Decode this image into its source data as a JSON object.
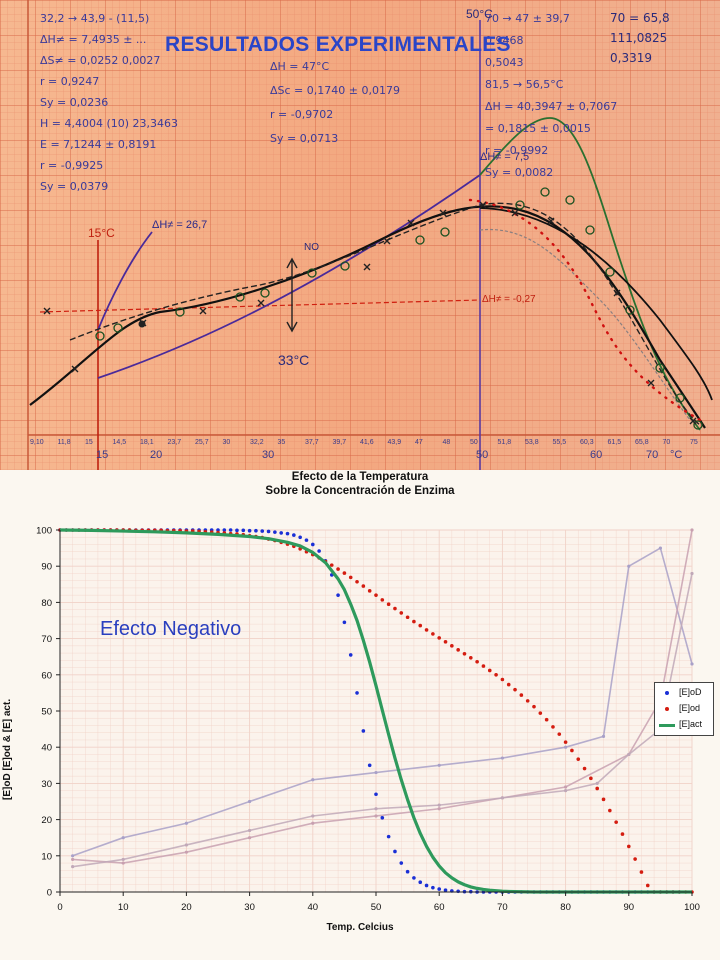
{
  "photo": {
    "title": "RESULTADOS EXPERIMENTALES",
    "handwritten": {
      "top_left": [
        "32,2 → 43,9 - (11,5)",
        "ΔH≠ = 7,4935 ± ...",
        "ΔS≠ = 0,0252 0,0027",
        "r = 0,9247",
        "Sy = 0,0236",
        "H = 4,4004 (10) 23,3463",
        "E = 7,1244 ± 0,8191",
        "r = -0,9925",
        "Sy = 0,0379"
      ],
      "top_mid": [
        "ΔH = 47°C",
        "ΔSc = 0,1740 ± 0,0179",
        "r = -0,9702",
        "Sy = 0,0713"
      ],
      "top_right": [
        "70 → 47 ± 39,7",
        "0,9468",
        "0,5043",
        "81,5 → 56,5°C",
        "ΔH = 40,3947 ± 0,7067",
        "= 0,1815 ± 0,0015",
        "r = -0,9992",
        "Sy = 0,0082"
      ],
      "corner_right": [
        "70 = 65,8",
        "111,0825",
        "0,3319"
      ],
      "mark_50c": "50°C",
      "mark_15c": "15°C",
      "mark_33c": "33°C",
      "mark_no": "NO",
      "dh_267": "ΔH≠ = 26,7",
      "dh_75": "ΔH≠ = 7,5",
      "dh_027": "ΔH≠ = -0,27",
      "x_ticks": [
        "9,10",
        "11,8",
        "15",
        "14,5",
        "18,1",
        "23,7",
        "25,7",
        "30",
        "32,2",
        "35",
        "37,7",
        "39,7",
        "41,6",
        "43,9",
        "47",
        "48",
        "50",
        "51,8",
        "53,8",
        "55,5",
        "60,3",
        "61,5",
        "65,8",
        "70",
        "75"
      ],
      "x_bottom": [
        "15",
        "20",
        "30",
        "50",
        "60",
        "70",
        "°C"
      ]
    }
  },
  "chart_data": {
    "type": "scatter",
    "title_line1": "Efecto de la Temperatura",
    "title_line2": "Sobre la Concentración de Enzima",
    "xlabel": "Temp. Celcius",
    "ylabel": "[E]oD [E]od & [E] act.",
    "xlim": [
      0,
      100
    ],
    "ylim": [
      0,
      100
    ],
    "x_ticks": [
      "0",
      "10",
      "20",
      "30",
      "40",
      "50",
      "60",
      "70",
      "80",
      "90",
      "100"
    ],
    "y_ticks": [
      "0",
      "10",
      "20",
      "30",
      "40",
      "50",
      "60",
      "70",
      "80",
      "90",
      "100"
    ],
    "annotation": "Efecto Negativo",
    "legend_position": "right",
    "series": [
      {
        "name": "[E]oD",
        "style": "dots",
        "color": "#1a2fd6",
        "x": [
          0,
          1,
          2,
          3,
          4,
          5,
          6,
          7,
          8,
          9,
          10,
          11,
          12,
          13,
          14,
          15,
          16,
          17,
          18,
          19,
          20,
          21,
          22,
          23,
          24,
          25,
          26,
          27,
          28,
          29,
          30,
          31,
          32,
          33,
          34,
          35,
          36,
          37,
          38,
          39,
          40,
          41,
          42,
          43,
          44,
          45,
          46,
          47,
          48,
          49,
          50,
          51,
          52,
          53,
          54,
          55,
          56,
          57,
          58,
          59,
          60,
          61,
          62,
          63,
          64,
          65,
          66,
          67,
          68,
          69,
          70,
          71,
          72,
          73,
          74,
          75,
          76,
          77,
          78,
          79,
          80,
          81,
          82,
          83,
          84,
          85,
          86,
          87,
          88,
          89,
          90,
          91,
          92,
          93,
          94,
          95,
          96,
          97,
          98
        ],
        "y": [
          100,
          100,
          100,
          100,
          100,
          100,
          100,
          100,
          100,
          100,
          100,
          100,
          100,
          100,
          100,
          100,
          100,
          100,
          100,
          100,
          100,
          100,
          100,
          100,
          100,
          100,
          100,
          100,
          99.9,
          99.9,
          99.8,
          99.8,
          99.7,
          99.6,
          99.4,
          99.2,
          99,
          98.6,
          98,
          97.2,
          96,
          94.2,
          91.5,
          87.6,
          82,
          74.5,
          65.5,
          55,
          44.5,
          35,
          27,
          20.5,
          15.3,
          11.2,
          8,
          5.6,
          3.9,
          2.7,
          1.8,
          1.2,
          0.8,
          0.5,
          0.3,
          0.2,
          0.1,
          0.1,
          0,
          0,
          0,
          0,
          0,
          0,
          0,
          0,
          0,
          0,
          0,
          0,
          0,
          0,
          0,
          0,
          0,
          0,
          0,
          0,
          0,
          0,
          0,
          0,
          0,
          0,
          0,
          0,
          0,
          0,
          0,
          0,
          0
        ]
      },
      {
        "name": "[E]od",
        "style": "dots",
        "color": "#d41c10",
        "x": [
          0,
          1,
          2,
          3,
          4,
          5,
          6,
          7,
          8,
          9,
          10,
          11,
          12,
          13,
          14,
          15,
          16,
          17,
          18,
          19,
          20,
          21,
          22,
          23,
          24,
          25,
          26,
          27,
          28,
          29,
          30,
          31,
          32,
          33,
          34,
          35,
          36,
          37,
          38,
          39,
          40,
          41,
          42,
          43,
          44,
          45,
          46,
          47,
          48,
          49,
          50,
          51,
          52,
          53,
          54,
          55,
          56,
          57,
          58,
          59,
          60,
          61,
          62,
          63,
          64,
          65,
          66,
          67,
          68,
          69,
          70,
          71,
          72,
          73,
          74,
          75,
          76,
          77,
          78,
          79,
          80,
          81,
          82,
          83,
          84,
          85,
          86,
          87,
          88,
          89,
          90,
          91,
          92,
          93,
          94,
          95,
          96,
          97,
          98,
          99,
          100
        ],
        "y": [
          100,
          100,
          100,
          100,
          100,
          100,
          100,
          100,
          100,
          100,
          100,
          100,
          99.9,
          99.9,
          99.9,
          99.9,
          99.9,
          99.8,
          99.8,
          99.8,
          99.7,
          99.7,
          99.6,
          99.5,
          99.4,
          99.3,
          99.2,
          99,
          98.9,
          98.7,
          98.4,
          98.2,
          97.9,
          97.5,
          97.1,
          96.6,
          96.1,
          95.5,
          94.8,
          94,
          93.2,
          92.3,
          91.3,
          90.3,
          89.2,
          88.1,
          86.9,
          85.7,
          84.5,
          83.2,
          82,
          80.7,
          79.5,
          78.3,
          77.1,
          75.9,
          74.7,
          73.6,
          72.4,
          71.3,
          70.2,
          69.1,
          68,
          66.9,
          65.8,
          64.7,
          63.6,
          62.4,
          61.2,
          60,
          58.7,
          57.3,
          55.9,
          54.4,
          52.8,
          51.2,
          49.4,
          47.6,
          45.6,
          43.6,
          41.4,
          39.1,
          36.7,
          34.1,
          31.4,
          28.6,
          25.6,
          22.5,
          19.3,
          16,
          12.6,
          9.1,
          5.5,
          1.8,
          0,
          0,
          0,
          0,
          0,
          0,
          0
        ]
      },
      {
        "name": "[E]act",
        "style": "line",
        "color": "#2e9a5c",
        "x": [
          0,
          5,
          10,
          15,
          20,
          25,
          30,
          33,
          36,
          38,
          40,
          42,
          44,
          45,
          46,
          47,
          48,
          49,
          50,
          51,
          52,
          53,
          54,
          55,
          56,
          57,
          58,
          59,
          60,
          61,
          62,
          63,
          64,
          65,
          66,
          67,
          68,
          70,
          72,
          75,
          80,
          85,
          90,
          95,
          100
        ],
        "y": [
          100,
          99.9,
          99.7,
          99.5,
          99.2,
          98.8,
          98.2,
          97.6,
          96.6,
          95.6,
          93.8,
          91,
          86.5,
          83.5,
          79.5,
          75,
          69.5,
          63.5,
          57,
          50.2,
          43.5,
          37,
          31,
          25.5,
          20.5,
          16.2,
          12.6,
          9.6,
          7.2,
          5.3,
          3.9,
          2.8,
          2,
          1.4,
          1,
          0.7,
          0.5,
          0.2,
          0.1,
          0,
          0,
          0,
          0,
          0,
          0
        ]
      },
      {
        "name": "background-photo-curve-a",
        "style": "faded",
        "color": "#a8a0c8",
        "x": [
          2,
          10,
          20,
          30,
          40,
          50,
          60,
          70,
          80,
          86,
          90,
          95,
          100
        ],
        "y": [
          10,
          15,
          19,
          25,
          31,
          33,
          35,
          37,
          40,
          43,
          90,
          95,
          63
        ]
      },
      {
        "name": "background-photo-curve-b",
        "style": "faded",
        "color": "#c8a0b0",
        "x": [
          2,
          10,
          20,
          30,
          40,
          50,
          60,
          70,
          80,
          90,
          95,
          100
        ],
        "y": [
          9,
          8,
          11,
          15,
          19,
          21,
          23,
          26,
          29,
          38,
          53,
          100
        ]
      },
      {
        "name": "background-photo-curve-c",
        "style": "faded",
        "color": "#c0a8b8",
        "x": [
          2,
          10,
          20,
          30,
          40,
          50,
          60,
          70,
          80,
          85,
          90,
          95,
          100
        ],
        "y": [
          7,
          9,
          13,
          17,
          21,
          23,
          24,
          26,
          28,
          30,
          38,
          45,
          88
        ]
      }
    ]
  }
}
